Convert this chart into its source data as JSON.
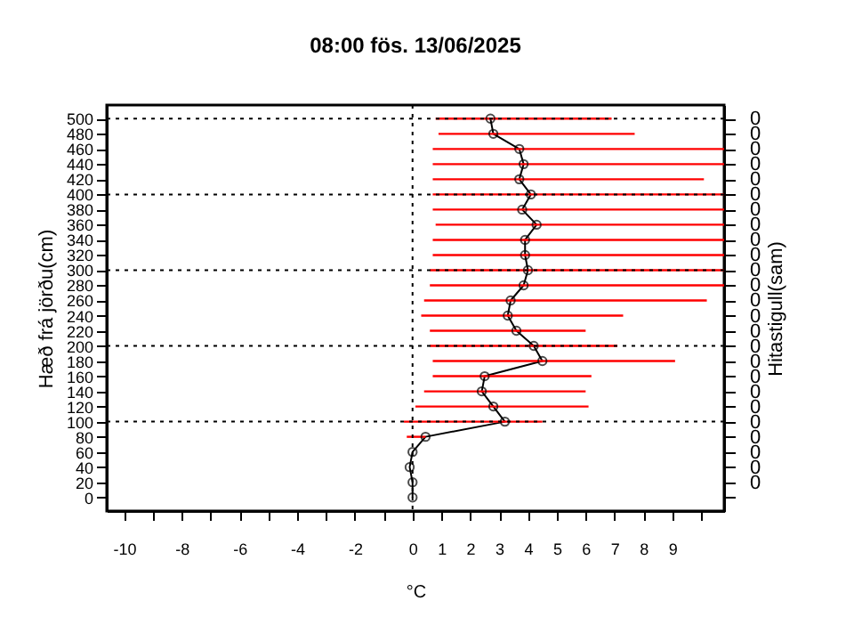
{
  "chart_data": {
    "type": "scatter",
    "title": "08:00   fös. 13/06/2025",
    "xlabel": "°C",
    "ylabel": "Hæð frá jörðu(cm)",
    "y2label": "Hitastigull(sam)",
    "xlim": [
      -10.6,
      10.8
    ],
    "ylim": [
      -18,
      518
    ],
    "xticks": [
      -10,
      {
        "value": -9,
        "label": null
      },
      -8,
      {
        "value": -7,
        "label": null
      },
      -6,
      {
        "value": -5,
        "label": null
      },
      -4,
      {
        "value": -3,
        "label": null
      },
      -2,
      {
        "value": -1,
        "label": null
      },
      0,
      1,
      2,
      3,
      4,
      5,
      6,
      7,
      8,
      9,
      {
        "value": 10,
        "label": null
      }
    ],
    "yticks": [
      0,
      20,
      40,
      60,
      80,
      100,
      120,
      140,
      160,
      180,
      200,
      220,
      240,
      260,
      280,
      300,
      320,
      340,
      360,
      380,
      400,
      420,
      440,
      460,
      480,
      500
    ],
    "y2_categories": [
      "0",
      "0",
      "0",
      "0",
      "0",
      "0",
      "0",
      "0",
      "0",
      "0",
      "0",
      "0",
      "0",
      "0",
      "0",
      "0",
      "0",
      "0",
      "0",
      "0",
      "0",
      "0",
      "0",
      "0",
      "0",
      null
    ],
    "grid": false,
    "ref_lines": [
      {
        "axis": "y",
        "value": 100,
        "color": "#000000",
        "line_style": "dotted"
      },
      {
        "axis": "y",
        "value": 200,
        "color": "#000000",
        "line_style": "dotted"
      },
      {
        "axis": "y",
        "value": 300,
        "color": "#000000",
        "line_style": "dotted"
      },
      {
        "axis": "y",
        "value": 400,
        "color": "#000000",
        "line_style": "dotted"
      },
      {
        "axis": "y",
        "value": 500,
        "color": "#000000",
        "line_style": "dotted"
      },
      {
        "axis": "x",
        "value": 0,
        "color": "#000000",
        "line_style": "dotted"
      }
    ],
    "series": [
      {
        "type": "line",
        "color": "#000000",
        "marker": "none",
        "x": [
          0.0,
          0.0,
          -0.1,
          0.0,
          0.45,
          3.2,
          2.8,
          2.4,
          2.5,
          4.5,
          4.2,
          3.6,
          3.3,
          3.4,
          3.85,
          4.0,
          3.9,
          3.9,
          4.3,
          3.8,
          4.1,
          3.7,
          3.85,
          3.7,
          2.8,
          2.7
        ],
        "values": [
          0,
          20,
          40,
          60,
          80,
          100,
          120,
          140,
          160,
          180,
          200,
          220,
          240,
          260,
          280,
          300,
          320,
          340,
          360,
          380,
          400,
          420,
          440,
          460,
          480,
          500
        ]
      },
      {
        "color": "#000000",
        "marker": "circle",
        "x": [
          0.0,
          0.0,
          -0.1,
          0.0,
          0.45,
          3.2,
          2.8,
          2.4,
          2.5,
          4.5,
          4.2,
          3.6,
          3.3,
          3.4,
          3.85,
          4.0,
          3.9,
          3.9,
          4.3,
          3.8,
          4.1,
          3.7,
          3.85,
          3.7,
          2.8,
          2.7
        ],
        "values": [
          0,
          20,
          40,
          60,
          80,
          100,
          120,
          140,
          160,
          180,
          200,
          220,
          240,
          260,
          280,
          300,
          320,
          340,
          360,
          380,
          400,
          420,
          440,
          460,
          480,
          500
        ],
        "xerrors": [
          null,
          null,
          null,
          null,
          [
            -0.2,
            0.45
          ],
          [
            -0.3,
            4.5
          ],
          [
            0.1,
            6.1
          ],
          [
            0.4,
            6.0
          ],
          [
            0.7,
            6.2
          ],
          [
            0.7,
            9.1
          ],
          [
            0.6,
            7.1
          ],
          [
            0.6,
            6.0
          ],
          [
            0.3,
            7.3
          ],
          [
            0.4,
            10.2
          ],
          [
            0.6,
            10.8
          ],
          [
            0.6,
            10.8
          ],
          [
            0.7,
            10.8
          ],
          [
            0.7,
            10.8
          ],
          [
            0.8,
            10.8
          ],
          [
            0.7,
            10.8
          ],
          [
            0.7,
            10.8
          ],
          [
            0.7,
            10.1
          ],
          [
            0.7,
            10.8
          ],
          [
            0.7,
            10.8
          ],
          [
            0.9,
            7.7
          ],
          [
            0.8,
            6.9
          ]
        ]
      }
    ]
  }
}
